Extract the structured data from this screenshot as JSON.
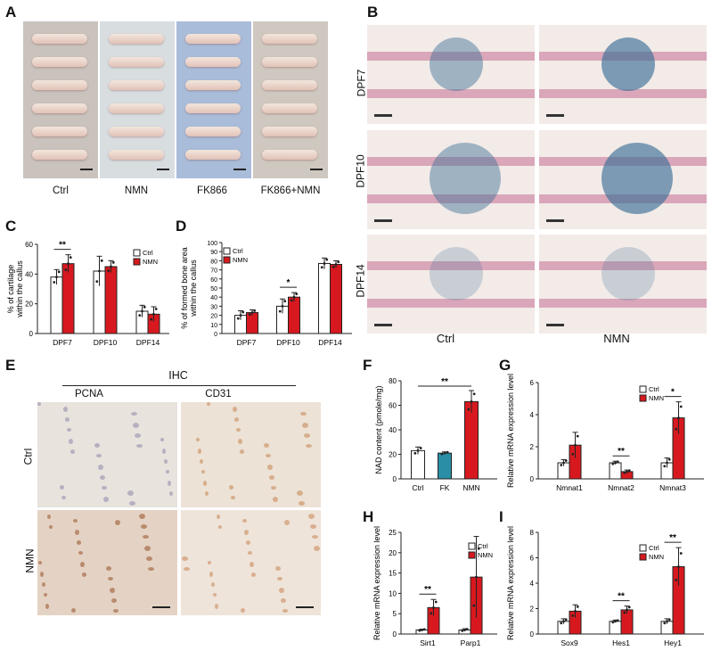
{
  "panels": {
    "A": "A",
    "B": "B",
    "C": "C",
    "D": "D",
    "E": "E",
    "F": "F",
    "G": "G",
    "H": "H",
    "I": "I"
  },
  "photos": {
    "groups": [
      "Ctrl",
      "NMN",
      "FK866",
      "FK866+NMN"
    ],
    "bg_colors": [
      "#c9c2bd",
      "#d8dde0",
      "#a9bcd9",
      "#cfc8c0"
    ]
  },
  "histology": {
    "rows": [
      "DPF7",
      "DPF10",
      "DPF14"
    ],
    "cols": [
      "Ctrl",
      "NMN"
    ]
  },
  "ihc": {
    "title": "IHC",
    "cols": [
      "PCNA",
      "CD31"
    ],
    "rows": [
      "Ctrl",
      "NMN"
    ]
  },
  "colors": {
    "ctrl": "#ffffff",
    "nmn": "#d7191f",
    "fk": "#2a8fa6",
    "stroke": "#222222"
  },
  "chart_data": [
    {
      "id": "C",
      "type": "bar",
      "ylabel": "% of cartilage\nwithin the callus",
      "ylim": [
        0,
        60
      ],
      "yticks": [
        0,
        20,
        40,
        60
      ],
      "categories": [
        "DPF7",
        "DPF10",
        "DPF14"
      ],
      "legend": [
        "Ctrl",
        "NMN"
      ],
      "series": [
        {
          "name": "Ctrl",
          "values": [
            38,
            42,
            15
          ],
          "err": [
            5,
            10,
            4
          ]
        },
        {
          "name": "NMN",
          "values": [
            47,
            45,
            13
          ],
          "err": [
            6,
            4,
            5
          ]
        }
      ],
      "sig": [
        {
          "between": [
            0,
            0
          ],
          "label": "**"
        }
      ]
    },
    {
      "id": "D",
      "type": "bar",
      "ylabel": "% of formed bone area\nwithin the callus",
      "ylim": [
        0,
        100
      ],
      "yticks": [
        0,
        10,
        20,
        30,
        40,
        50,
        60,
        70,
        80,
        90,
        100
      ],
      "categories": [
        "DPF7",
        "DPF10",
        "DPF14"
      ],
      "legend": [
        "Ctrl",
        "NMN"
      ],
      "series": [
        {
          "name": "Ctrl",
          "values": [
            20,
            30,
            77
          ],
          "err": [
            5,
            8,
            6
          ]
        },
        {
          "name": "NMN",
          "values": [
            23,
            40,
            76
          ],
          "err": [
            3,
            5,
            4
          ]
        }
      ],
      "sig": [
        {
          "between": [
            1,
            1
          ],
          "label": "*"
        }
      ]
    },
    {
      "id": "F",
      "type": "bar",
      "ylabel": "NAD content (pmole/mg)",
      "ylim": [
        0,
        80
      ],
      "yticks": [
        0,
        20,
        40,
        60,
        80
      ],
      "categories": [
        "Ctrl",
        "FK",
        "NMN"
      ],
      "values": [
        23,
        21,
        63
      ],
      "err": [
        3,
        1,
        9
      ],
      "sig": [
        {
          "from": 0,
          "to": 2,
          "label": "**"
        }
      ]
    },
    {
      "id": "G",
      "type": "bar",
      "ylabel": "Relative mRNA expression level",
      "ylim": [
        0,
        6
      ],
      "yticks": [
        0,
        2,
        4,
        6
      ],
      "categories": [
        "Nmnat1",
        "Nmnat2",
        "Nmnat3"
      ],
      "legend": [
        "Ctrl",
        "NMN"
      ],
      "series": [
        {
          "name": "Ctrl",
          "values": [
            1.0,
            1.0,
            1.0
          ],
          "err": [
            0.2,
            0.1,
            0.3
          ]
        },
        {
          "name": "NMN",
          "values": [
            2.1,
            0.45,
            3.8
          ],
          "err": [
            0.8,
            0.1,
            1.0
          ]
        }
      ],
      "sig": [
        {
          "between": [
            1,
            1
          ],
          "label": "**"
        },
        {
          "between": [
            2,
            2
          ],
          "label": "*"
        }
      ]
    },
    {
      "id": "H",
      "type": "bar",
      "ylabel": "Relative mRNA expression level",
      "ylim": [
        0,
        25
      ],
      "yticks": [
        0,
        5,
        10,
        15,
        20,
        25
      ],
      "categories": [
        "Sirt1",
        "Parp1"
      ],
      "legend": [
        "Ctrl",
        "NMN"
      ],
      "series": [
        {
          "name": "Ctrl",
          "values": [
            1.0,
            1.0
          ],
          "err": [
            0.2,
            0.3
          ]
        },
        {
          "name": "NMN",
          "values": [
            6.5,
            14
          ],
          "err": [
            2,
            10
          ]
        }
      ],
      "sig": [
        {
          "between": [
            0,
            0
          ],
          "label": "**"
        }
      ]
    },
    {
      "id": "I",
      "type": "bar",
      "ylabel": "Relative mRNA expression level",
      "ylim": [
        0,
        8
      ],
      "yticks": [
        0,
        2,
        4,
        6,
        8
      ],
      "categories": [
        "Sox9",
        "Hes1",
        "Hey1"
      ],
      "legend": [
        "Ctrl",
        "NMN"
      ],
      "series": [
        {
          "name": "Ctrl",
          "values": [
            1.0,
            1.0,
            1.0
          ],
          "err": [
            0.2,
            0.1,
            0.2
          ]
        },
        {
          "name": "NMN",
          "values": [
            1.8,
            1.9,
            5.3
          ],
          "err": [
            0.5,
            0.3,
            1.5
          ]
        }
      ],
      "sig": [
        {
          "between": [
            1,
            1
          ],
          "label": "**"
        },
        {
          "between": [
            2,
            2
          ],
          "label": "**"
        }
      ]
    }
  ]
}
